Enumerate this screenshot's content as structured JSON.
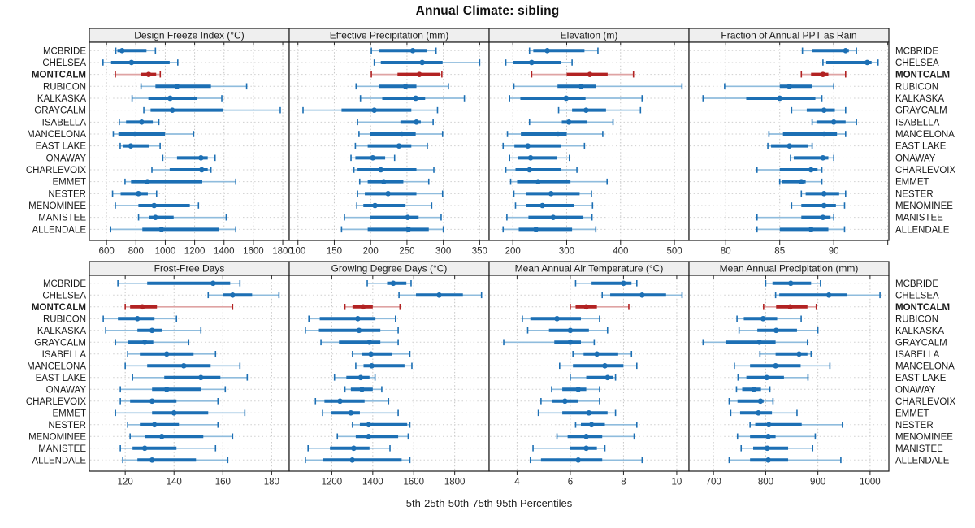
{
  "title": "Annual Climate: sibling",
  "caption": "5th-25th-50th-75th-95th Percentiles",
  "sites": [
    "MCBRIDE",
    "CHELSEA",
    "MONTCALM",
    "RUBICON",
    "KALKASKA",
    "GRAYCALM",
    "ISABELLA",
    "MANCELONA",
    "EAST LAKE",
    "ONAWAY",
    "CHARLEVOIX",
    "EMMET",
    "NESTER",
    "MENOMINEE",
    "MANISTEE",
    "ALLENDALE"
  ],
  "highlight_site": "MONTCALM",
  "colors": {
    "blue": "#1c6fb4",
    "blue_light": "#8fbcdd",
    "red": "#b22222",
    "red_light": "#dfa3a3",
    "strip_bg": "#efefef",
    "border": "#1a1a1a",
    "grid": "#c6c6c6",
    "grid_h": "#cfcfcf",
    "text": "#1a1a1a",
    "tick_text": "#2a2a2a"
  },
  "chart_data": {
    "type": "dotplot-percentiles",
    "title": "Annual Climate: sibling",
    "xlabel": "5th-25th-50th-75th-95th Percentiles",
    "percentile_labels": [
      "5th",
      "25th",
      "50th",
      "75th",
      "95th"
    ],
    "layout": {
      "rows": 2,
      "cols": 4,
      "grid": "dotted",
      "highlight_color_note": "MONTCALM row drawn in red, all others blue"
    },
    "panels": [
      {
        "id": "design-freeze-index",
        "title": "Design Freeze Index (°C)",
        "ticks": [
          600,
          800,
          1000,
          1200,
          1400,
          1600,
          1800
        ],
        "tick_labels": [
          "600",
          "800",
          "1000",
          "1200",
          "1400",
          "1600",
          "1800"
        ],
        "domain": [
          483,
          1844
        ],
        "values": [
          [
            663,
            674,
            706,
            872,
            933
          ],
          [
            576,
            631,
            770,
            1030,
            1085
          ],
          [
            660,
            833,
            887,
            938,
            966
          ],
          [
            835,
            933,
            1080,
            1311,
            1554
          ],
          [
            774,
            885,
            1033,
            1219,
            1385
          ],
          [
            854,
            900,
            1048,
            1391,
            1783
          ],
          [
            687,
            733,
            839,
            915,
            956
          ],
          [
            646,
            681,
            793,
            998,
            1193
          ],
          [
            693,
            715,
            765,
            891,
            965
          ],
          [
            983,
            1080,
            1243,
            1289,
            1339
          ],
          [
            909,
            1030,
            1248,
            1289,
            1311
          ],
          [
            726,
            767,
            878,
            1252,
            1480
          ],
          [
            641,
            696,
            817,
            881,
            941
          ],
          [
            660,
            817,
            924,
            1167,
            1226
          ],
          [
            818,
            891,
            933,
            1057,
            1415
          ],
          [
            628,
            844,
            974,
            1363,
            1480
          ]
        ]
      },
      {
        "id": "effective-precipitation",
        "title": "Effective Precipitation (mm)",
        "ticks": [
          100,
          150,
          200,
          250,
          300,
          350
        ],
        "tick_labels": [
          "100",
          "150",
          "200",
          "250",
          "300",
          "350"
        ],
        "domain": [
          88,
          363
        ],
        "values": [
          [
            201,
            212,
            258,
            278,
            290
          ],
          [
            205,
            214,
            271,
            299,
            350
          ],
          [
            201,
            237,
            267,
            295,
            298
          ],
          [
            180,
            211,
            248,
            263,
            307
          ],
          [
            186,
            216,
            262,
            275,
            329
          ],
          [
            107,
            160,
            205,
            256,
            292
          ],
          [
            182,
            241,
            263,
            269,
            286
          ],
          [
            184,
            199,
            243,
            262,
            299
          ],
          [
            179,
            196,
            239,
            256,
            278
          ],
          [
            173,
            179,
            203,
            220,
            233
          ],
          [
            177,
            182,
            214,
            263,
            287
          ],
          [
            185,
            196,
            218,
            245,
            280
          ],
          [
            182,
            192,
            224,
            263,
            299
          ],
          [
            181,
            190,
            206,
            248,
            284
          ],
          [
            164,
            199,
            251,
            266,
            297
          ],
          [
            160,
            196,
            252,
            280,
            300
          ]
        ]
      },
      {
        "id": "elevation",
        "title": "Elevation (m)",
        "ticks": [
          200,
          300,
          400,
          500
        ],
        "tick_labels": [
          "200",
          "300",
          "400",
          "500"
        ],
        "domain": [
          156,
          527
        ],
        "values": [
          [
            231,
            238,
            264,
            333,
            358
          ],
          [
            187,
            200,
            235,
            289,
            310
          ],
          [
            235,
            300,
            343,
            376,
            424
          ],
          [
            202,
            283,
            327,
            354,
            514
          ],
          [
            194,
            214,
            299,
            335,
            440
          ],
          [
            285,
            310,
            336,
            373,
            437
          ],
          [
            231,
            291,
            304,
            338,
            386
          ],
          [
            190,
            215,
            284,
            300,
            367
          ],
          [
            182,
            203,
            228,
            289,
            333
          ],
          [
            194,
            210,
            233,
            282,
            305
          ],
          [
            187,
            205,
            231,
            290,
            319
          ],
          [
            196,
            208,
            247,
            307,
            375
          ],
          [
            202,
            224,
            271,
            324,
            346
          ],
          [
            205,
            225,
            255,
            313,
            348
          ],
          [
            189,
            229,
            275,
            331,
            347
          ],
          [
            182,
            211,
            243,
            310,
            354
          ]
        ]
      },
      {
        "id": "fraction-annual-ppt-rain",
        "title": "Fraction of Annual PPT as Rain",
        "ticks": [
          80,
          85,
          90,
          95
        ],
        "tick_labels": [
          "80",
          "85",
          "90",
          ""
        ],
        "domain": [
          76.6,
          95.1
        ],
        "values": [
          [
            87.1,
            88.0,
            91.1,
            91.4,
            92.1
          ],
          [
            89.0,
            89.3,
            93.1,
            93.5,
            94.1
          ],
          [
            87.0,
            87.9,
            89.0,
            89.5,
            91.1
          ],
          [
            79.9,
            85.0,
            85.9,
            88.0,
            90.0
          ],
          [
            77.9,
            81.9,
            85.0,
            88.3,
            88.9
          ],
          [
            86.1,
            87.5,
            89.1,
            90.1,
            91.1
          ],
          [
            88.0,
            88.4,
            90.0,
            91.1,
            92.1
          ],
          [
            84.0,
            85.3,
            89.1,
            90.3,
            91.1
          ],
          [
            83.9,
            84.2,
            85.9,
            87.6,
            88.0
          ],
          [
            86.0,
            86.3,
            89.0,
            89.5,
            90.0
          ],
          [
            82.9,
            85.0,
            87.9,
            88.5,
            88.9
          ],
          [
            85.0,
            85.2,
            87.0,
            87.4,
            88.9
          ],
          [
            87.0,
            87.4,
            89.1,
            90.5,
            91.1
          ],
          [
            86.1,
            87.0,
            89.1,
            90.2,
            91.0
          ],
          [
            82.9,
            87.0,
            89.0,
            89.7,
            90.0
          ],
          [
            82.9,
            85.0,
            87.9,
            89.5,
            91.0
          ]
        ]
      },
      {
        "id": "frost-free-days",
        "title": "Frost-Free Days",
        "ticks": [
          120,
          140,
          160,
          180
        ],
        "tick_labels": [
          "120",
          "140",
          "160",
          "180"
        ],
        "domain": [
          105.3,
          187.2
        ],
        "values": [
          [
            117,
            129,
            156,
            163,
            167
          ],
          [
            154,
            160,
            164,
            172,
            183
          ],
          [
            120,
            122,
            127,
            133,
            164
          ],
          [
            111,
            117,
            125,
            132,
            141
          ],
          [
            112,
            125,
            131,
            135,
            151
          ],
          [
            116,
            121,
            128,
            131.5,
            146
          ],
          [
            121,
            126,
            137,
            148,
            157
          ],
          [
            120,
            129,
            144,
            155,
            167
          ],
          [
            123,
            136,
            151,
            159,
            170
          ],
          [
            118,
            131,
            137,
            151,
            161
          ],
          [
            118,
            122,
            131,
            141,
            158
          ],
          [
            116,
            131,
            140,
            154,
            169
          ],
          [
            121,
            126,
            132,
            142,
            158
          ],
          [
            122,
            128,
            135,
            152,
            164
          ],
          [
            118,
            123,
            128,
            141,
            157
          ],
          [
            119,
            125,
            131,
            149,
            162
          ]
        ]
      },
      {
        "id": "growing-degree-days",
        "title": "Growing Degree Days (°C)",
        "ticks": [
          1200,
          1400,
          1600,
          1800
        ],
        "tick_labels": [
          "1200",
          "1400",
          "1600",
          "1800"
        ],
        "domain": [
          992,
          1968
        ],
        "values": [
          [
            1373,
            1470,
            1500,
            1564,
            1587
          ],
          [
            1528,
            1611,
            1724,
            1840,
            1931
          ],
          [
            1264,
            1301,
            1353,
            1400,
            1533
          ],
          [
            1088,
            1141,
            1327,
            1413,
            1511
          ],
          [
            1071,
            1137,
            1333,
            1437,
            1524
          ],
          [
            1147,
            1235,
            1384,
            1437,
            1524
          ],
          [
            1301,
            1347,
            1391,
            1493,
            1581
          ],
          [
            1317,
            1355,
            1395,
            1555,
            1591
          ],
          [
            1213,
            1271,
            1341,
            1384,
            1411
          ],
          [
            1264,
            1293,
            1347,
            1400,
            1444
          ],
          [
            1120,
            1164,
            1240,
            1360,
            1477
          ],
          [
            1155,
            1195,
            1293,
            1337,
            1524
          ],
          [
            1301,
            1337,
            1380,
            1568,
            1581
          ],
          [
            1227,
            1317,
            1380,
            1524,
            1573
          ],
          [
            1084,
            1191,
            1307,
            1384,
            1484
          ],
          [
            1071,
            1155,
            1300,
            1541,
            1581
          ]
        ]
      },
      {
        "id": "mean-annual-air-temperature",
        "title": "Mean Annual Air Temperature (°C)",
        "ticks": [
          4,
          6,
          8,
          10
        ],
        "tick_labels": [
          "4",
          "6",
          "8",
          "10"
        ],
        "domain": [
          2.95,
          10.46
        ],
        "values": [
          [
            6.2,
            6.8,
            8.0,
            8.3,
            8.5
          ],
          [
            7.2,
            7.5,
            8.7,
            9.6,
            10.2
          ],
          [
            6.0,
            6.2,
            6.6,
            7.0,
            8.2
          ],
          [
            4.2,
            4.5,
            5.5,
            6.4,
            7.1
          ],
          [
            4.4,
            5.2,
            6.0,
            6.7,
            7.4
          ],
          [
            3.5,
            5.4,
            6.0,
            6.4,
            6.9
          ],
          [
            6.1,
            6.5,
            7.0,
            7.8,
            8.3
          ],
          [
            5.6,
            6.1,
            7.3,
            8.0,
            8.5
          ],
          [
            6.0,
            6.6,
            7.4,
            7.6,
            7.7
          ],
          [
            5.3,
            5.7,
            6.3,
            6.6,
            7.1
          ],
          [
            4.9,
            5.3,
            5.8,
            6.3,
            7.1
          ],
          [
            4.8,
            5.7,
            6.7,
            7.4,
            7.7
          ],
          [
            6.2,
            6.4,
            6.8,
            7.3,
            8.5
          ],
          [
            5.5,
            5.9,
            6.6,
            7.2,
            8.4
          ],
          [
            4.6,
            6.0,
            6.6,
            7.0,
            7.3
          ],
          [
            4.5,
            4.9,
            6.3,
            7.2,
            8.7
          ]
        ]
      },
      {
        "id": "mean-annual-precipitation",
        "title": "Mean Annual Precipitation (mm)",
        "ticks": [
          700,
          800,
          900,
          1000
        ],
        "tick_labels": [
          "700",
          "800",
          "900",
          "1000"
        ],
        "domain": [
          653,
          1036
        ],
        "values": [
          [
            800,
            813,
            848,
            887,
            905
          ],
          [
            819,
            826,
            921,
            956,
            1019
          ],
          [
            796,
            820,
            847,
            880,
            897
          ],
          [
            745,
            758,
            795,
            822,
            868
          ],
          [
            749,
            784,
            820,
            860,
            900
          ],
          [
            680,
            723,
            788,
            819,
            880
          ],
          [
            789,
            819,
            864,
            880,
            887
          ],
          [
            740,
            770,
            819,
            867,
            923
          ],
          [
            747,
            763,
            802,
            835,
            881
          ],
          [
            744,
            755,
            777,
            791,
            808
          ],
          [
            730,
            746,
            790,
            796,
            814
          ],
          [
            733,
            751,
            786,
            812,
            860
          ],
          [
            770,
            780,
            806,
            869,
            947
          ],
          [
            746,
            770,
            805,
            819,
            895
          ],
          [
            753,
            776,
            803,
            843,
            890
          ],
          [
            730,
            770,
            805,
            843,
            944
          ]
        ]
      }
    ]
  }
}
